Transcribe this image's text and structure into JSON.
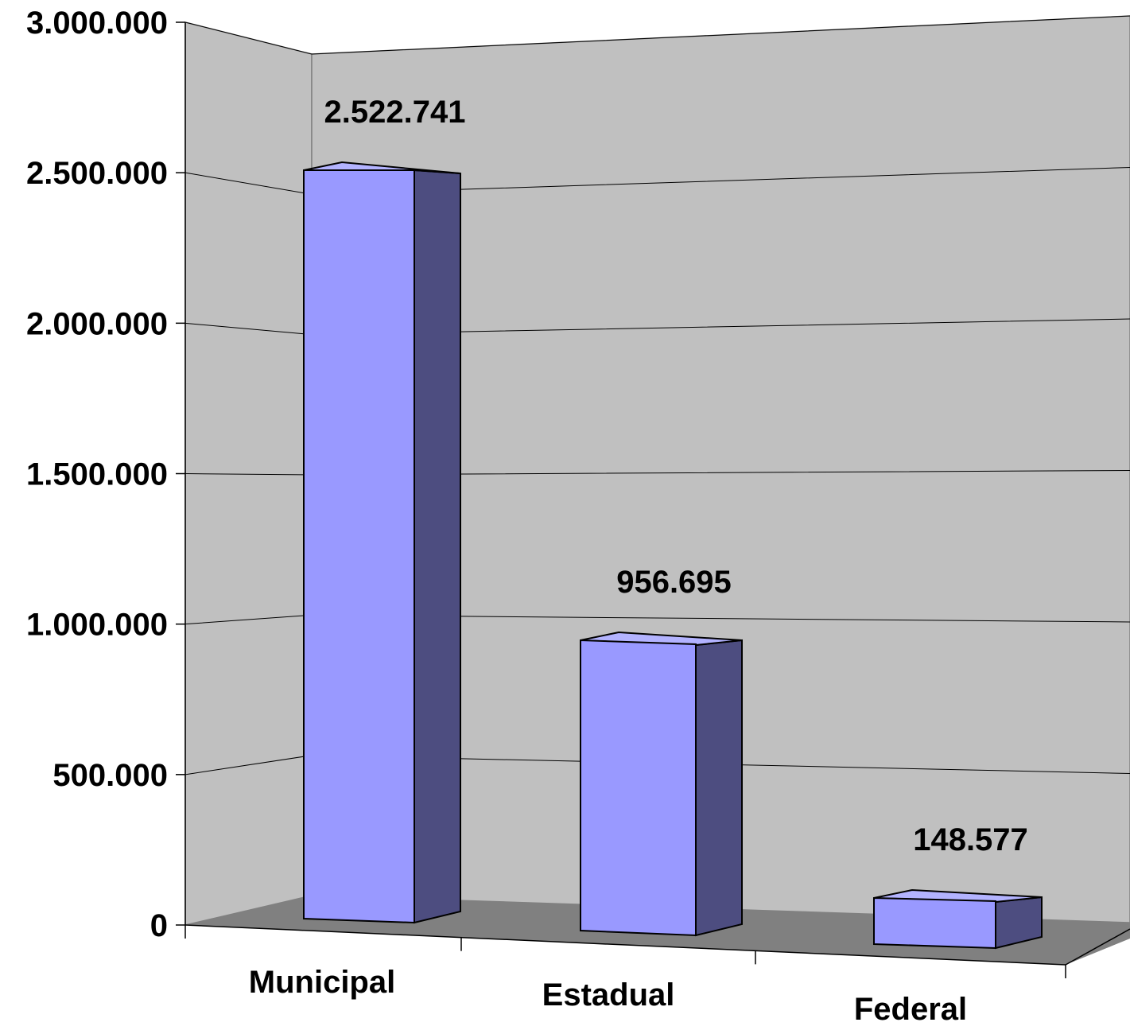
{
  "chart_data": {
    "type": "bar",
    "title": "",
    "xlabel": "",
    "ylabel": "",
    "categories": [
      "Municipal",
      "Estadual",
      "Federal"
    ],
    "values": [
      2522741,
      956695,
      148577
    ],
    "value_labels": [
      "2.522.741",
      "956.695",
      "148.577"
    ],
    "ylim": [
      0,
      3000000
    ],
    "y_ticks": [
      0,
      500000,
      1000000,
      1500000,
      2000000,
      2500000,
      3000000
    ],
    "y_tick_labels": [
      "0",
      "500.000",
      "1.000.000",
      "1.500.000",
      "2.000.000",
      "2.500.000",
      "3.000.000"
    ],
    "grid": true,
    "legend": "none",
    "style": "3d-column",
    "colors": {
      "bar_front": "#9999ff",
      "bar_side": "#4d4d80",
      "bar_top": "#b3b3ff",
      "wall": "#c0c0c0",
      "floor": "#808080",
      "axis": "#000000"
    }
  }
}
